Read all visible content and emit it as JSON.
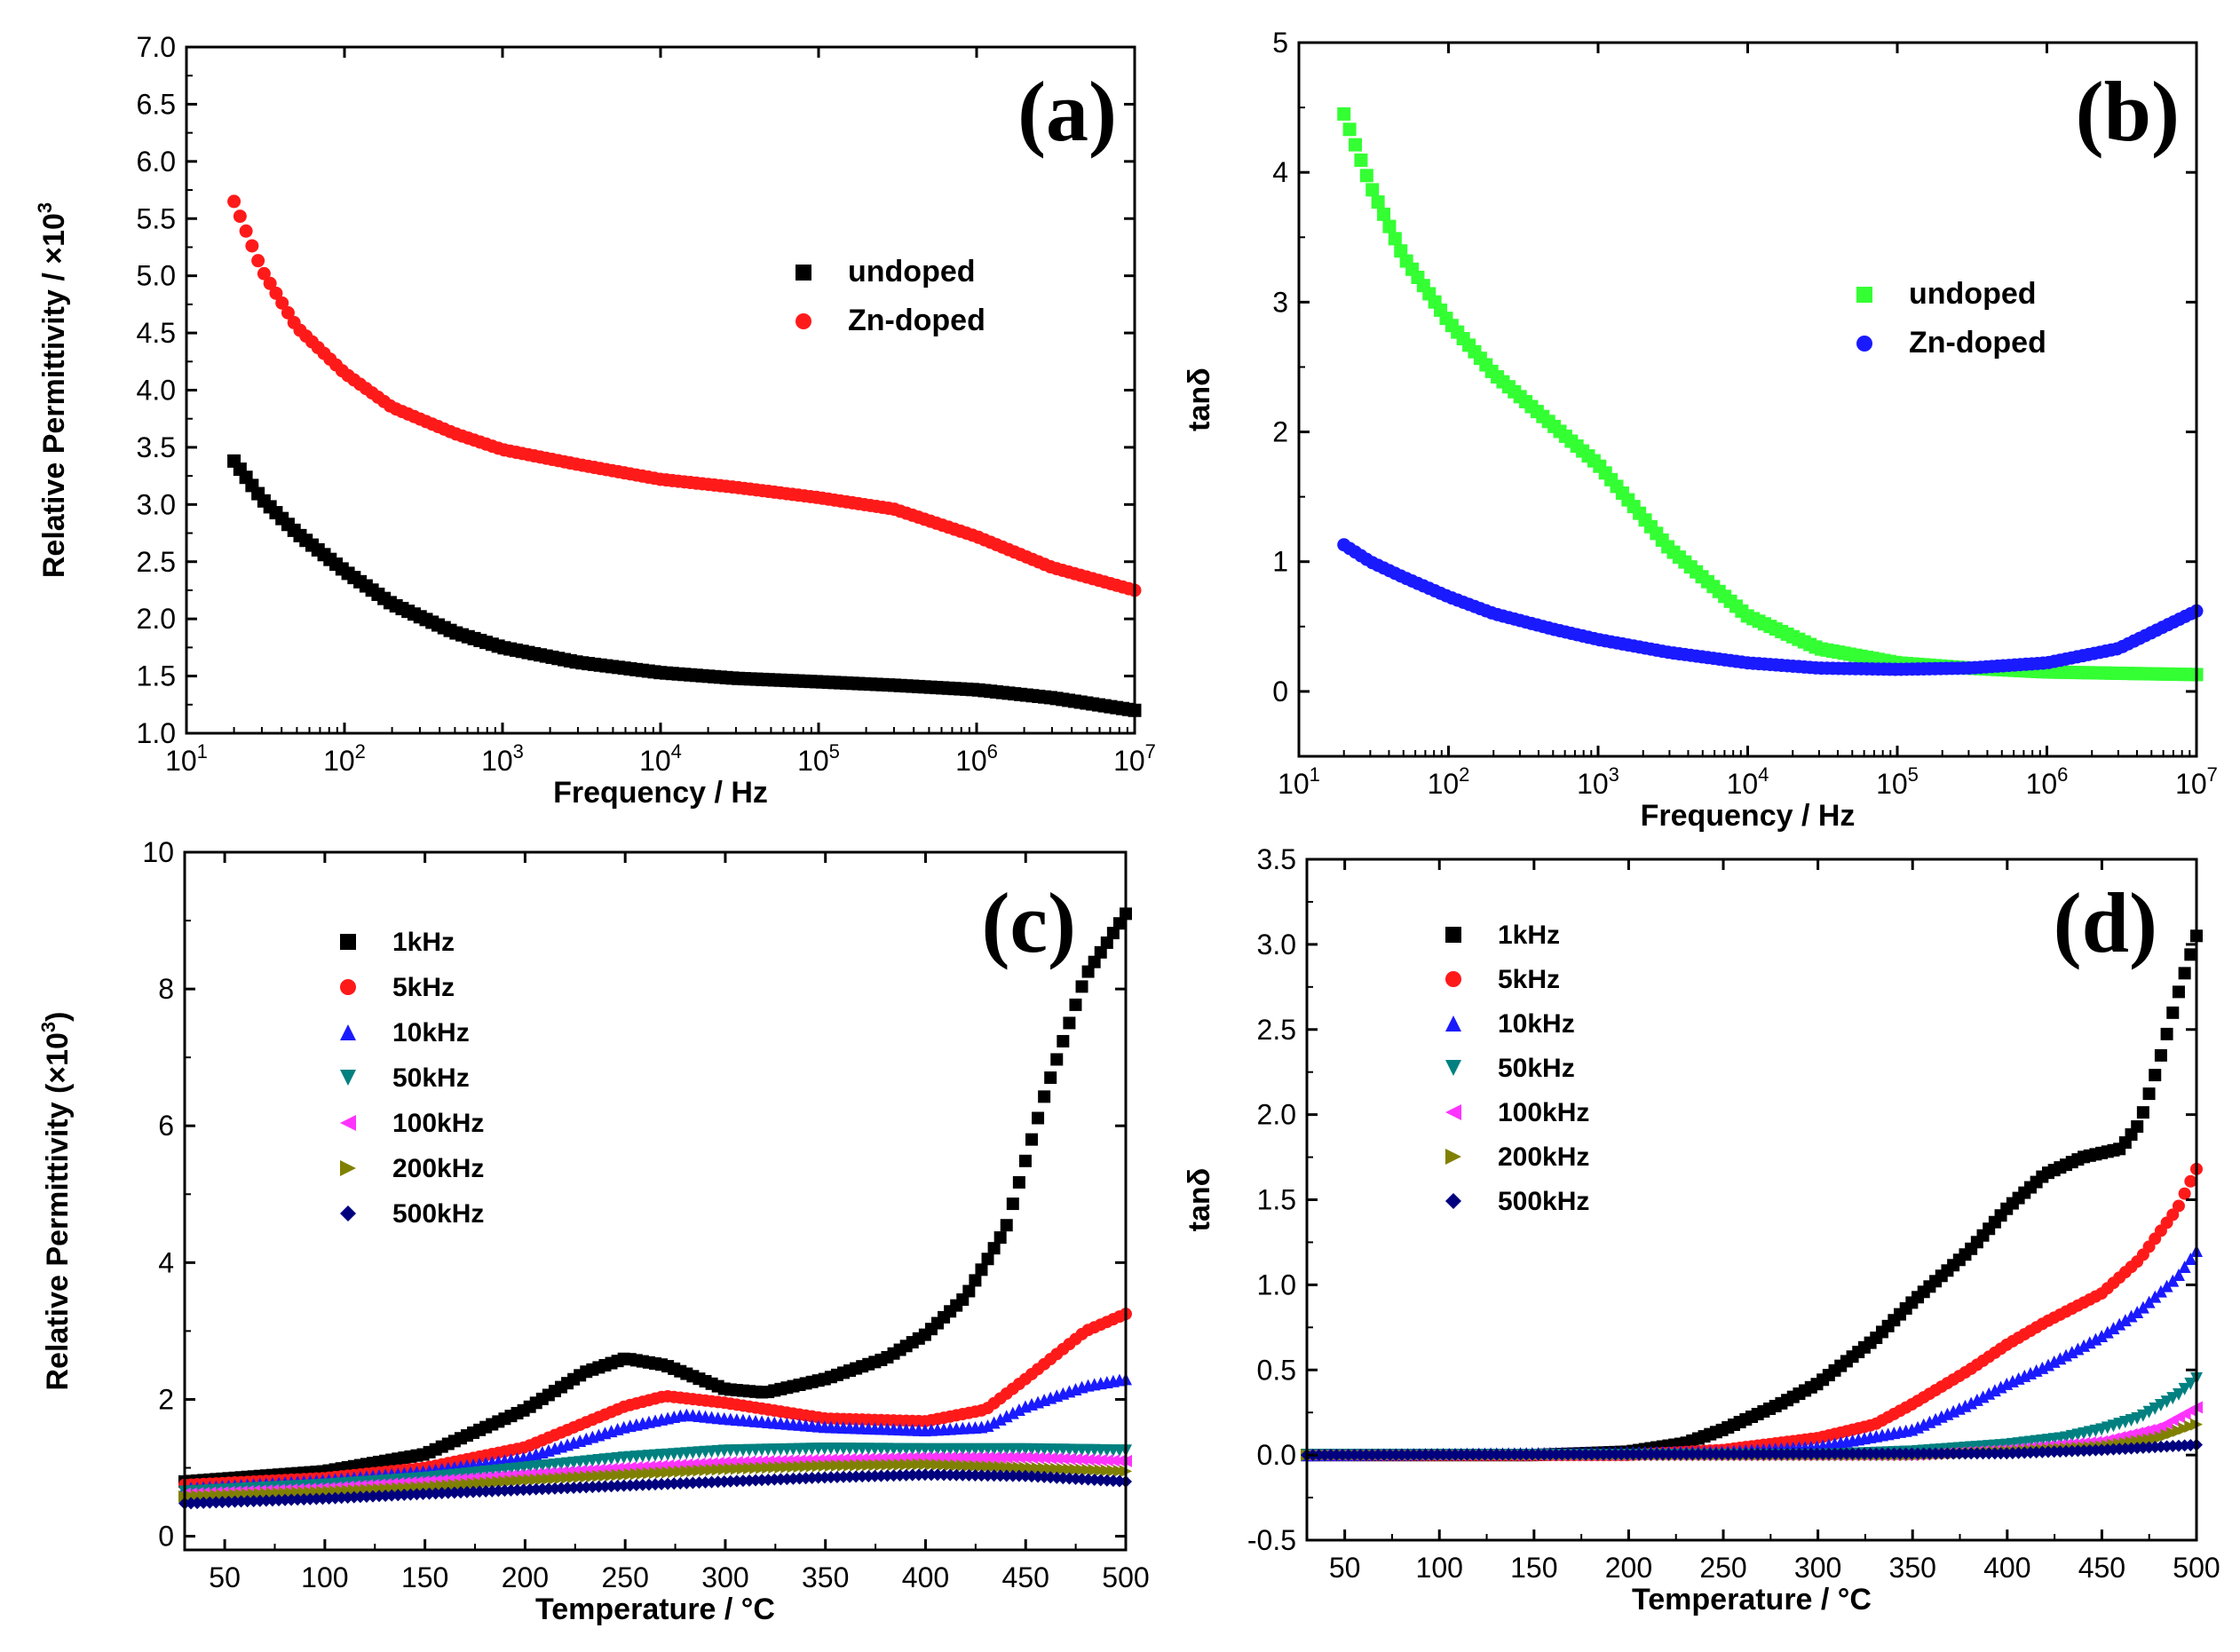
{
  "chart_data": [
    {
      "id": "a",
      "type": "scatter",
      "panel_label": "(a)",
      "xscale": "log",
      "xlim": [
        10,
        10000000
      ],
      "ylim": [
        1.0,
        7.0
      ],
      "xticks": [
        {
          "v": 10,
          "b": "10",
          "e": "1"
        },
        {
          "v": 100,
          "b": "10",
          "e": "2"
        },
        {
          "v": 1000,
          "b": "10",
          "e": "3"
        },
        {
          "v": 10000,
          "b": "10",
          "e": "4"
        },
        {
          "v": 100000,
          "b": "10",
          "e": "5"
        },
        {
          "v": 1000000,
          "b": "10",
          "e": "6"
        },
        {
          "v": 10000000,
          "b": "10",
          "e": "7"
        }
      ],
      "yticks": [
        1.0,
        1.5,
        2.0,
        2.5,
        3.0,
        3.5,
        4.0,
        4.5,
        5.0,
        5.5,
        6.0,
        6.5,
        7.0
      ],
      "ytick_decimals": 1,
      "xlabel": "Frequency / Hz",
      "ylabel": {
        "main": "Relative Permittivity / ×10",
        "sup": "3"
      },
      "legend_position": "center-right",
      "series": [
        {
          "name": "undoped",
          "marker": "square",
          "color": "#000000",
          "x": [
            20,
            30,
            50,
            100,
            200,
            500,
            1000,
            3000,
            10000,
            30000,
            100000,
            300000,
            1000000,
            3000000,
            10000000
          ],
          "y": [
            3.38,
            3.05,
            2.75,
            2.42,
            2.13,
            1.88,
            1.75,
            1.62,
            1.53,
            1.48,
            1.45,
            1.42,
            1.38,
            1.31,
            1.2
          ]
        },
        {
          "name": "Zn-doped",
          "marker": "circle",
          "color": "#ff1a1a",
          "x": [
            20,
            30,
            50,
            100,
            200,
            500,
            1000,
            3000,
            10000,
            30000,
            100000,
            300000,
            1000000,
            3000000,
            10000000
          ],
          "y": [
            5.65,
            5.05,
            4.55,
            4.15,
            3.85,
            3.62,
            3.48,
            3.35,
            3.22,
            3.15,
            3.06,
            2.96,
            2.72,
            2.45,
            2.25
          ]
        }
      ]
    },
    {
      "id": "b",
      "type": "scatter",
      "panel_label": "(b)",
      "xscale": "log",
      "xlim": [
        10,
        10000000
      ],
      "ylim": [
        -0.5,
        5
      ],
      "xticks": [
        {
          "v": 10,
          "b": "10",
          "e": "1"
        },
        {
          "v": 100,
          "b": "10",
          "e": "2"
        },
        {
          "v": 1000,
          "b": "10",
          "e": "3"
        },
        {
          "v": 10000,
          "b": "10",
          "e": "4"
        },
        {
          "v": 100000,
          "b": "10",
          "e": "5"
        },
        {
          "v": 1000000,
          "b": "10",
          "e": "6"
        },
        {
          "v": 10000000,
          "b": "10",
          "e": "7"
        }
      ],
      "yticks": [
        0,
        1,
        2,
        3,
        4,
        5
      ],
      "ytick_decimals": 0,
      "xlabel": "Frequency / Hz",
      "ylabel": {
        "main": "tanδ",
        "sup": ""
      },
      "legend_position": "center-right",
      "series": [
        {
          "name": "undoped",
          "marker": "square",
          "color": "#33ff33",
          "x": [
            20,
            30,
            50,
            100,
            200,
            500,
            1000,
            3000,
            10000,
            30000,
            100000,
            300000,
            1000000,
            3000000,
            10000000
          ],
          "y": [
            4.45,
            3.9,
            3.35,
            2.85,
            2.45,
            2.05,
            1.75,
            1.1,
            0.58,
            0.33,
            0.22,
            0.18,
            0.15,
            0.14,
            0.13
          ]
        },
        {
          "name": "Zn-doped",
          "marker": "circle",
          "color": "#1a1aff",
          "x": [
            20,
            30,
            50,
            100,
            200,
            500,
            1000,
            3000,
            10000,
            30000,
            100000,
            300000,
            1000000,
            3000000,
            10000000
          ],
          "y": [
            1.13,
            1.0,
            0.88,
            0.73,
            0.6,
            0.48,
            0.4,
            0.3,
            0.22,
            0.18,
            0.17,
            0.18,
            0.22,
            0.33,
            0.62
          ]
        }
      ]
    },
    {
      "id": "c",
      "type": "scatter",
      "panel_label": "(c)",
      "xscale": "linear",
      "xlim": [
        30,
        500
      ],
      "ylim": [
        -0.2,
        10
      ],
      "xticks": [
        {
          "v": 50,
          "b": "50"
        },
        {
          "v": 100,
          "b": "100"
        },
        {
          "v": 150,
          "b": "150"
        },
        {
          "v": 200,
          "b": "200"
        },
        {
          "v": 250,
          "b": "250"
        },
        {
          "v": 300,
          "b": "300"
        },
        {
          "v": 350,
          "b": "350"
        },
        {
          "v": 400,
          "b": "400"
        },
        {
          "v": 450,
          "b": "450"
        },
        {
          "v": 500,
          "b": "500"
        }
      ],
      "yticks": [
        0,
        2,
        4,
        6,
        8,
        10
      ],
      "ytick_decimals": 0,
      "xlabel": "Temperature / °C",
      "ylabel": {
        "main": "Relative Permittivity (×10",
        "sup": "3",
        "post": ")"
      },
      "legend_position": "top-left",
      "series": [
        {
          "name": "1kHz",
          "marker": "square",
          "color": "#000000",
          "x": [
            30,
            100,
            150,
            200,
            230,
            250,
            270,
            300,
            320,
            350,
            380,
            400,
            420,
            440,
            460,
            480,
            500
          ],
          "y": [
            0.8,
            0.95,
            1.2,
            1.85,
            2.4,
            2.6,
            2.5,
            2.15,
            2.1,
            2.3,
            2.6,
            2.95,
            3.5,
            4.5,
            6.5,
            8.2,
            9.1
          ]
        },
        {
          "name": "5kHz",
          "marker": "circle",
          "color": "#ff1a1a",
          "x": [
            30,
            100,
            150,
            200,
            250,
            270,
            300,
            350,
            400,
            430,
            450,
            480,
            500
          ],
          "y": [
            0.75,
            0.85,
            1.0,
            1.3,
            1.9,
            2.05,
            1.95,
            1.72,
            1.68,
            1.85,
            2.3,
            3.0,
            3.25
          ]
        },
        {
          "name": "10kHz",
          "marker": "triangle-up",
          "color": "#1a1aff",
          "x": [
            30,
            100,
            150,
            200,
            250,
            280,
            300,
            350,
            400,
            430,
            450,
            480,
            500
          ],
          "y": [
            0.7,
            0.82,
            0.95,
            1.15,
            1.6,
            1.78,
            1.72,
            1.6,
            1.55,
            1.6,
            1.9,
            2.2,
            2.3
          ]
        },
        {
          "name": "50kHz",
          "marker": "triangle-down",
          "color": "#008080",
          "x": [
            30,
            100,
            150,
            200,
            250,
            300,
            350,
            400,
            450,
            500
          ],
          "y": [
            0.65,
            0.75,
            0.85,
            1.0,
            1.15,
            1.25,
            1.28,
            1.27,
            1.27,
            1.25
          ]
        },
        {
          "name": "100kHz",
          "marker": "triangle-left",
          "color": "#ff33ff",
          "x": [
            30,
            100,
            150,
            200,
            250,
            300,
            350,
            400,
            450,
            500
          ],
          "y": [
            0.62,
            0.7,
            0.8,
            0.9,
            1.0,
            1.08,
            1.12,
            1.15,
            1.15,
            1.1
          ]
        },
        {
          "name": "200kHz",
          "marker": "triangle-right",
          "color": "#808000",
          "x": [
            30,
            100,
            150,
            200,
            250,
            300,
            350,
            400,
            450,
            500
          ],
          "y": [
            0.58,
            0.65,
            0.72,
            0.82,
            0.9,
            0.98,
            1.03,
            1.05,
            1.0,
            0.95
          ]
        },
        {
          "name": "500kHz",
          "marker": "diamond",
          "color": "#00007f",
          "x": [
            30,
            100,
            150,
            200,
            250,
            300,
            350,
            400,
            450,
            500
          ],
          "y": [
            0.48,
            0.55,
            0.62,
            0.68,
            0.74,
            0.8,
            0.86,
            0.9,
            0.88,
            0.8
          ]
        }
      ]
    },
    {
      "id": "d",
      "type": "scatter",
      "panel_label": "(d)",
      "xscale": "linear",
      "xlim": [
        30,
        500
      ],
      "ylim": [
        -0.5,
        3.5
      ],
      "xticks": [
        {
          "v": 50,
          "b": "50"
        },
        {
          "v": 100,
          "b": "100"
        },
        {
          "v": 150,
          "b": "150"
        },
        {
          "v": 200,
          "b": "200"
        },
        {
          "v": 250,
          "b": "250"
        },
        {
          "v": 300,
          "b": "300"
        },
        {
          "v": 350,
          "b": "350"
        },
        {
          "v": 400,
          "b": "400"
        },
        {
          "v": 450,
          "b": "450"
        },
        {
          "v": 500,
          "b": "500"
        }
      ],
      "yticks": [
        -0.5,
        0.0,
        0.5,
        1.0,
        1.5,
        2.0,
        2.5,
        3.0,
        3.5
      ],
      "ytick_decimals": 1,
      "xlabel": "Temperature / °C",
      "ylabel": {
        "main": "tanδ",
        "sup": ""
      },
      "legend_position": "top-left",
      "series": [
        {
          "name": "1kHz",
          "marker": "square",
          "color": "#000000",
          "x": [
            30,
            150,
            200,
            230,
            250,
            280,
            300,
            330,
            350,
            380,
            400,
            420,
            440,
            460,
            470,
            480,
            490,
            500
          ],
          "y": [
            0.0,
            0.0,
            0.02,
            0.07,
            0.15,
            0.3,
            0.42,
            0.68,
            0.9,
            1.2,
            1.45,
            1.65,
            1.75,
            1.8,
            1.95,
            2.3,
            2.7,
            3.05
          ]
        },
        {
          "name": "5kHz",
          "marker": "circle",
          "color": "#ff1a1a",
          "x": [
            30,
            200,
            250,
            300,
            330,
            350,
            380,
            400,
            420,
            450,
            470,
            490,
            500
          ],
          "y": [
            0.0,
            0.0,
            0.03,
            0.1,
            0.18,
            0.3,
            0.5,
            0.65,
            0.78,
            0.95,
            1.15,
            1.45,
            1.68
          ]
        },
        {
          "name": "10kHz",
          "marker": "triangle-up",
          "color": "#1a1aff",
          "x": [
            30,
            250,
            300,
            350,
            380,
            400,
            420,
            450,
            470,
            490,
            500
          ],
          "y": [
            0.0,
            0.02,
            0.05,
            0.15,
            0.3,
            0.42,
            0.52,
            0.7,
            0.85,
            1.05,
            1.2
          ]
        },
        {
          "name": "50kHz",
          "marker": "triangle-down",
          "color": "#008080",
          "x": [
            30,
            300,
            350,
            400,
            430,
            450,
            470,
            490,
            500
          ],
          "y": [
            0.0,
            0.0,
            0.02,
            0.06,
            0.1,
            0.15,
            0.22,
            0.35,
            0.45
          ]
        },
        {
          "name": "100kHz",
          "marker": "triangle-left",
          "color": "#ff33ff",
          "x": [
            30,
            350,
            400,
            450,
            480,
            500
          ],
          "y": [
            0.0,
            0.0,
            0.03,
            0.08,
            0.16,
            0.28
          ]
        },
        {
          "name": "200kHz",
          "marker": "triangle-right",
          "color": "#808000",
          "x": [
            30,
            350,
            400,
            450,
            480,
            500
          ],
          "y": [
            0.0,
            0.0,
            0.02,
            0.05,
            0.1,
            0.18
          ]
        },
        {
          "name": "500kHz",
          "marker": "diamond",
          "color": "#00007f",
          "x": [
            30,
            400,
            450,
            500
          ],
          "y": [
            0.0,
            0.01,
            0.03,
            0.06
          ]
        }
      ]
    }
  ]
}
